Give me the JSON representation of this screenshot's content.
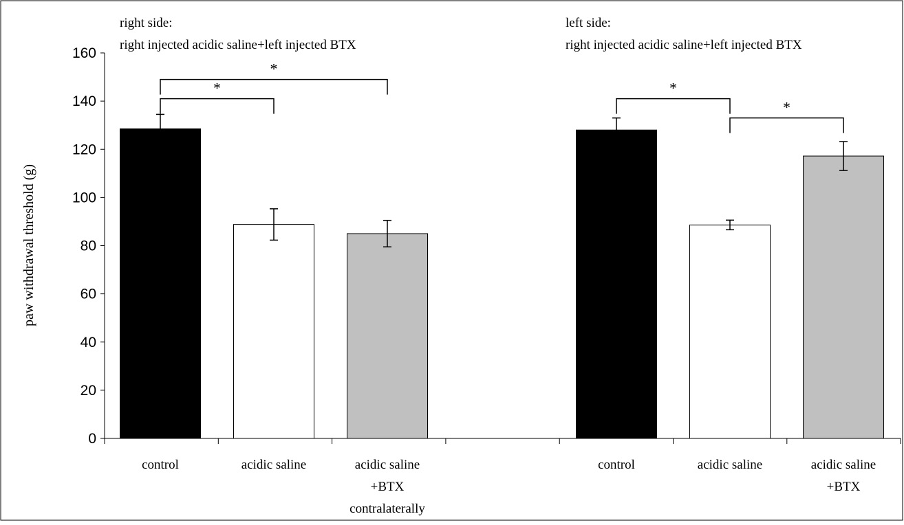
{
  "chart_data": {
    "type": "bar",
    "ylabel": "paw withdrawal threshold (g)",
    "ylim": [
      0,
      160
    ],
    "yticks": [
      "0",
      "20",
      "40",
      "60",
      "80",
      "100",
      "120",
      "140",
      "160"
    ],
    "grid": false,
    "annotations": {
      "right_side": {
        "line1": "right side:",
        "line2": "right injected acidic saline+left injected BTX"
      },
      "left_side": {
        "line1": "left side:",
        "line2": "right injected acidic saline+left injected BTX"
      }
    },
    "categories": [
      {
        "label_lines": [
          "control"
        ]
      },
      {
        "label_lines": [
          "acidic saline"
        ]
      },
      {
        "label_lines": [
          "acidic saline",
          "+BTX",
          "contralaterally"
        ]
      },
      {
        "label_lines": [
          "control"
        ]
      },
      {
        "label_lines": [
          "acidic saline"
        ]
      },
      {
        "label_lines": [
          "acidic saline",
          "+BTX"
        ]
      }
    ],
    "bars": [
      {
        "value": 128.5,
        "error": 6,
        "color": "#000000"
      },
      {
        "value": 88.8,
        "error": 6.5,
        "color": "#ffffff"
      },
      {
        "value": 85,
        "error": 5.5,
        "color": "#c0c0c0"
      },
      {
        "value": 128,
        "error": 5,
        "color": "#000000"
      },
      {
        "value": 88.6,
        "error": 2,
        "color": "#ffffff"
      },
      {
        "value": 117.2,
        "error": 6,
        "color": "#c0c0c0"
      }
    ],
    "significance": [
      {
        "from": 0,
        "to": 2,
        "y": 149,
        "label": "*"
      },
      {
        "from": 0,
        "to": 1,
        "y": 141,
        "label": "*"
      },
      {
        "from": 3,
        "to": 4,
        "y": 141,
        "label": "*"
      },
      {
        "from": 4,
        "to": 5,
        "y": 133,
        "label": "*"
      }
    ]
  }
}
